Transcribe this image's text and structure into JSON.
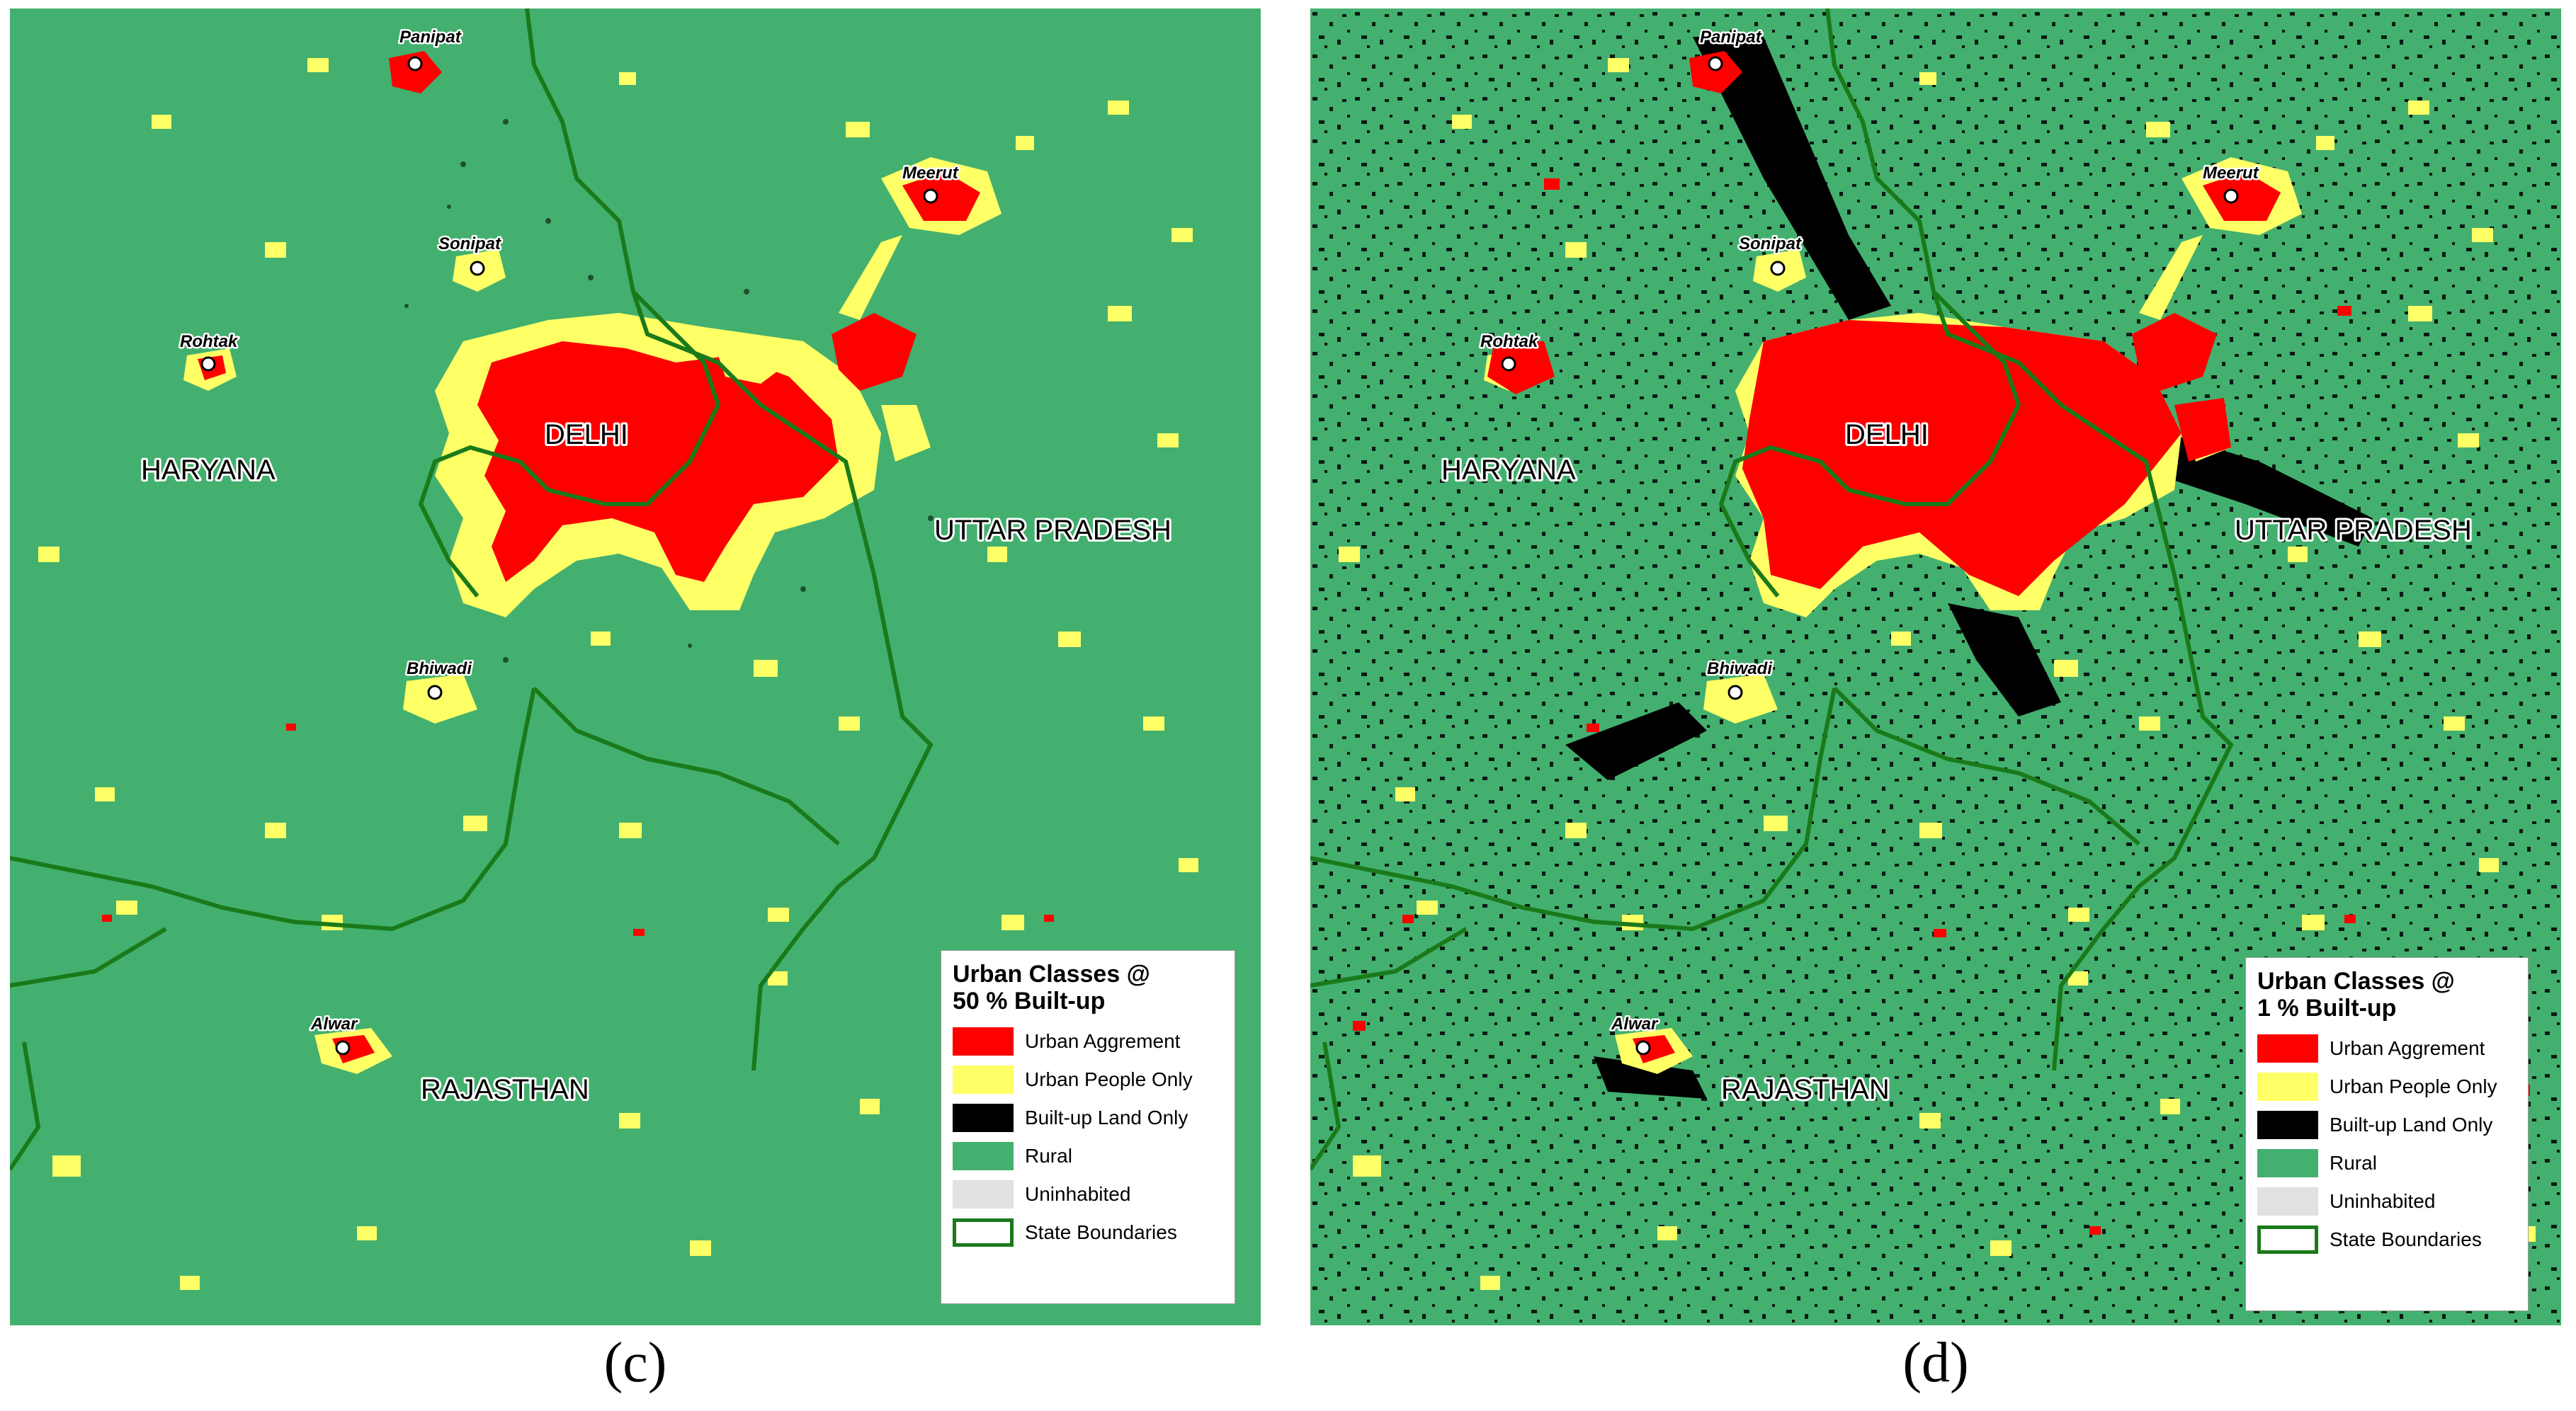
{
  "colors": {
    "rural": "#43b06f",
    "urban_aggrement": "#ff0000",
    "urban_people_only": "#ffff66",
    "built_up_only": "#000000",
    "uninhabited": "#e1e1e1",
    "state_boundary": "#1a7a1a"
  },
  "panels": [
    {
      "caption_label": "(c)",
      "state_labels": [
        "HARYANA",
        "DELHI",
        "UTTAR PRADESH",
        "RAJASTHAN"
      ],
      "city_labels": [
        "Panipat",
        "Meerut",
        "Sonipat",
        "Rohtak",
        "Bhiwadi",
        "Alwar"
      ],
      "legend": {
        "title_line1": "Urban Classes @",
        "title_line2": "50 % Built-up",
        "items": [
          "Urban Aggrement",
          "Urban People Only",
          "Built-up Land Only",
          "Rural",
          "Uninhabited",
          "State Boundaries"
        ]
      }
    },
    {
      "caption_label": "(d)",
      "state_labels": [
        "HARYANA",
        "DELHI",
        "UTTAR PRADESH",
        "RAJASTHAN"
      ],
      "city_labels": [
        "Panipat",
        "Meerut",
        "Sonipat",
        "Rohtak",
        "Bhiwadi",
        "Alwar"
      ],
      "legend": {
        "title_line1": "Urban Classes @",
        "title_line2": "1 % Built-up",
        "items": [
          "Urban Aggrement",
          "Urban People Only",
          "Built-up Land Only",
          "Rural",
          "Uninhabited",
          "State Boundaries"
        ]
      }
    }
  ]
}
